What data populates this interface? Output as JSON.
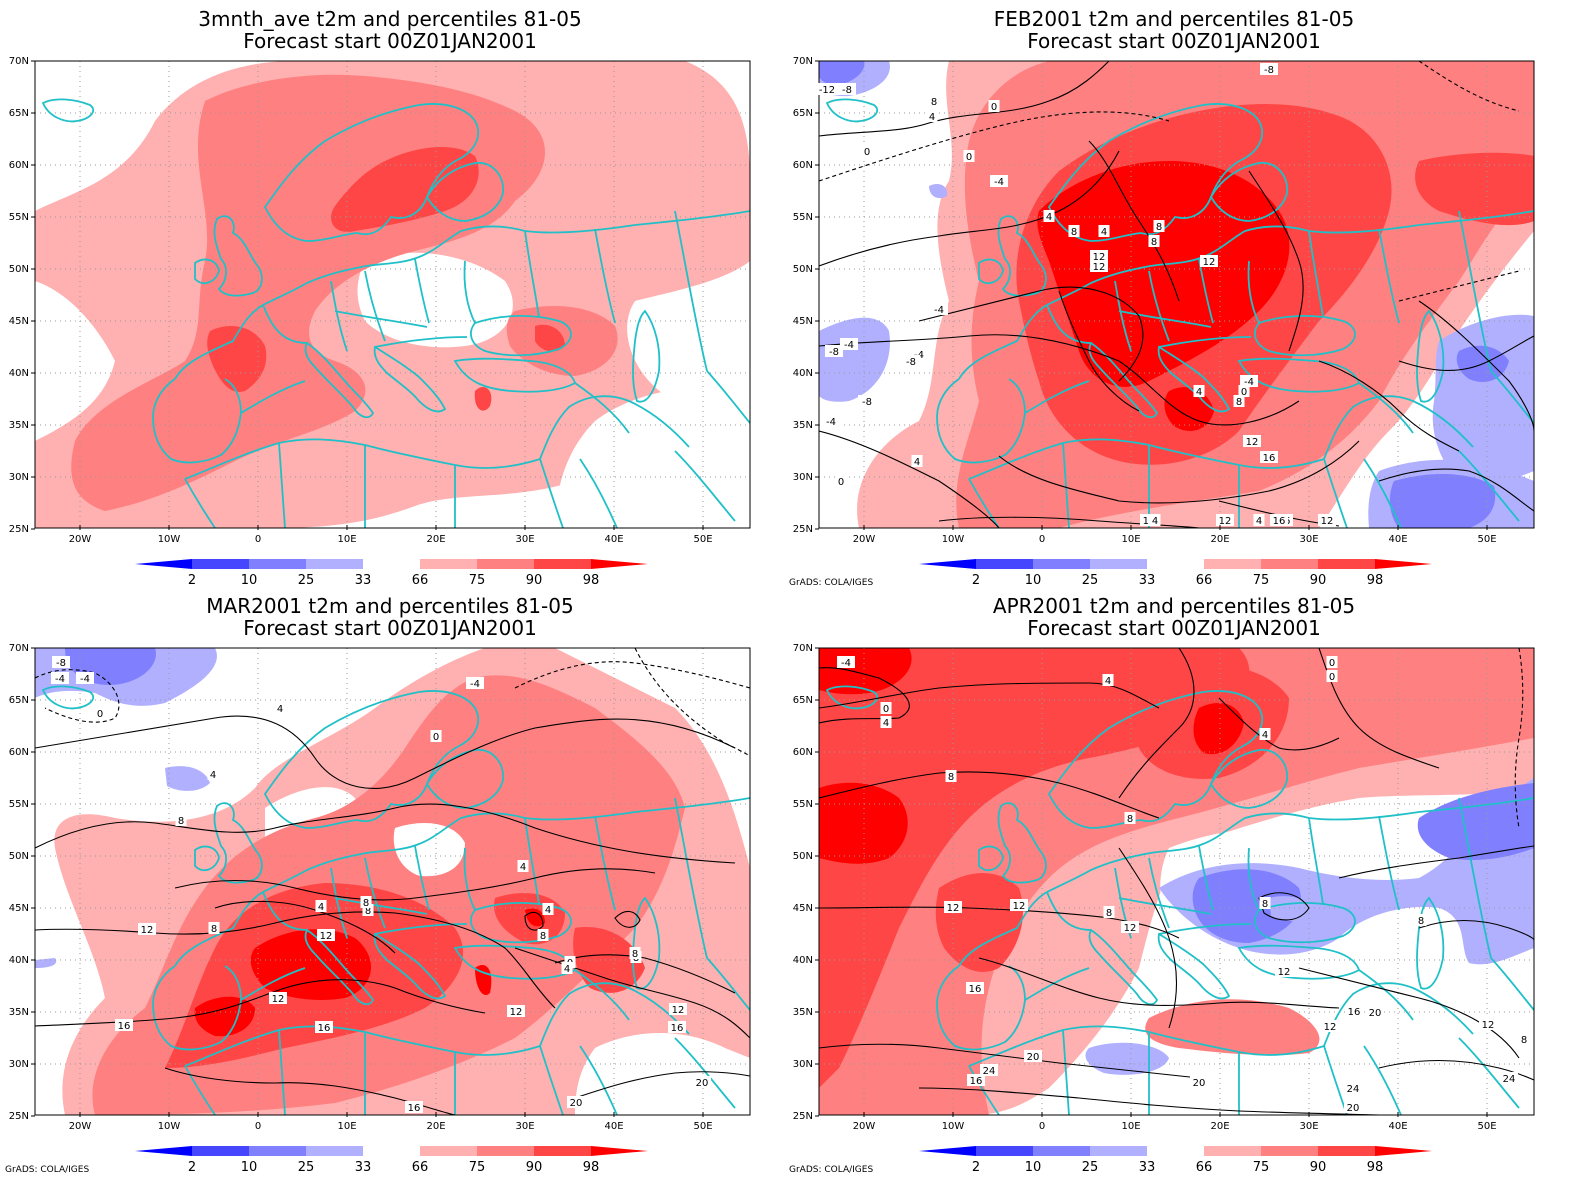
{
  "credit": "GrADS: COLA/IGES",
  "lat_labels": [
    "70N",
    "65N",
    "60N",
    "55N",
    "50N",
    "45N",
    "40N",
    "35N",
    "30N",
    "25N"
  ],
  "lon_labels": [
    "20W",
    "10W",
    "0",
    "10E",
    "20E",
    "30E",
    "40E",
    "50E"
  ],
  "colorbar": {
    "ticks": [
      "2",
      "10",
      "25",
      "33",
      "66",
      "75",
      "90",
      "98"
    ],
    "colors": [
      "#0000ff",
      "#4646ff",
      "#8080ff",
      "#b0b0ff",
      "#ffffff",
      "#ffb0b0",
      "#ff8080",
      "#ff4646",
      "#ff0000"
    ]
  },
  "colors": {
    "coast": "#20c0c8",
    "contour": "#000000",
    "grid": "#999999"
  },
  "panels": [
    {
      "title1": "3mnth_ave t2m and percentiles 81-05",
      "title2": "Forecast start 00Z01JAN2001",
      "contour_labels": []
    },
    {
      "title1": "FEB2001 t2m and percentiles 81-05",
      "title2": "Forecast start 00Z01JAN2001",
      "contour_labels": [
        "-12",
        "-8",
        "-4",
        "-8",
        "-8",
        "-4",
        "-8",
        "-4",
        "-4",
        "0",
        "4",
        "-4",
        "0",
        "4",
        "8",
        "0",
        "0",
        "4",
        "8",
        "12",
        "4",
        "12",
        "8",
        "8",
        "12",
        "4",
        "12",
        "4",
        "0",
        "-4",
        "8",
        "12",
        "16",
        "16",
        "16",
        "12",
        "4",
        "-8",
        "12"
      ]
    },
    {
      "title1": "MAR2001 t2m and percentiles 81-05",
      "title2": "Forecast start 00Z01JAN2001",
      "contour_labels": [
        "-8",
        "-4",
        "-4",
        "0",
        "4",
        "4",
        "-4",
        "0",
        "8",
        "4",
        "4",
        "8",
        "12",
        "8",
        "12",
        "8",
        "8",
        "4",
        "0",
        "8",
        "12",
        "12",
        "16",
        "16",
        "12",
        "8",
        "16",
        "4",
        "20",
        "20",
        "16"
      ]
    },
    {
      "title1": "APR2001 t2m and percentiles 81-05",
      "title2": "Forecast start 00Z01JAN2001",
      "contour_labels": [
        "-4",
        "0",
        "4",
        "4",
        "8",
        "8",
        "0",
        "0",
        "4",
        "12",
        "12",
        "8",
        "12",
        "16",
        "8",
        "12",
        "16",
        "8",
        "12",
        "20",
        "16",
        "20",
        "24",
        "24",
        "20",
        "20",
        "24",
        "16",
        "12",
        "8"
      ]
    }
  ]
}
